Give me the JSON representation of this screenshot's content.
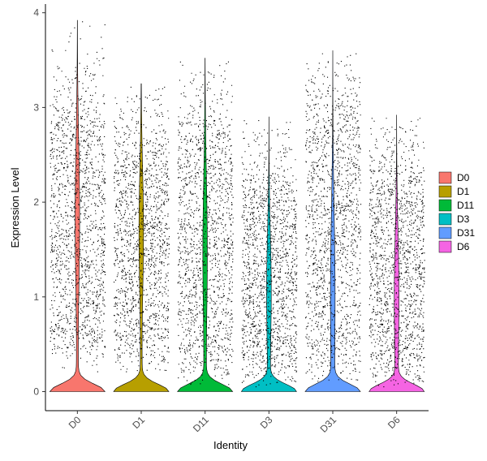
{
  "chart_data": {
    "type": "violin",
    "xlabel": "Identity",
    "ylabel": "Expression Level",
    "yticks": [
      0,
      1,
      2,
      3,
      4
    ],
    "ylim": [
      -0.2,
      4.05
    ],
    "grid": false,
    "legend_position": "right",
    "categories": [
      "D0",
      "D1",
      "D11",
      "D3",
      "D31",
      "D6"
    ],
    "series": [
      {
        "name": "D0",
        "color": "#F8766D",
        "max": 3.92,
        "expressed_range": [
          0.5,
          2.95
        ],
        "expressed_median": 1.85
      },
      {
        "name": "D1",
        "color": "#B79F00",
        "max": 3.25,
        "expressed_range": [
          0.5,
          2.6
        ],
        "expressed_median": 1.7
      },
      {
        "name": "D11",
        "color": "#00BA38",
        "max": 3.52,
        "expressed_range": [
          0.35,
          2.8
        ],
        "expressed_median": 1.5
      },
      {
        "name": "D3",
        "color": "#00BFC4",
        "max": 2.9,
        "expressed_range": [
          0.3,
          2.2
        ],
        "expressed_median": 1.1
      },
      {
        "name": "D31",
        "color": "#619CFF",
        "max": 3.6,
        "expressed_range": [
          0.4,
          3.0
        ],
        "expressed_median": 1.1
      },
      {
        "name": "D6",
        "color": "#F564E3",
        "max": 2.92,
        "expressed_range": [
          0.3,
          2.3
        ],
        "expressed_median": 1.05
      }
    ]
  }
}
